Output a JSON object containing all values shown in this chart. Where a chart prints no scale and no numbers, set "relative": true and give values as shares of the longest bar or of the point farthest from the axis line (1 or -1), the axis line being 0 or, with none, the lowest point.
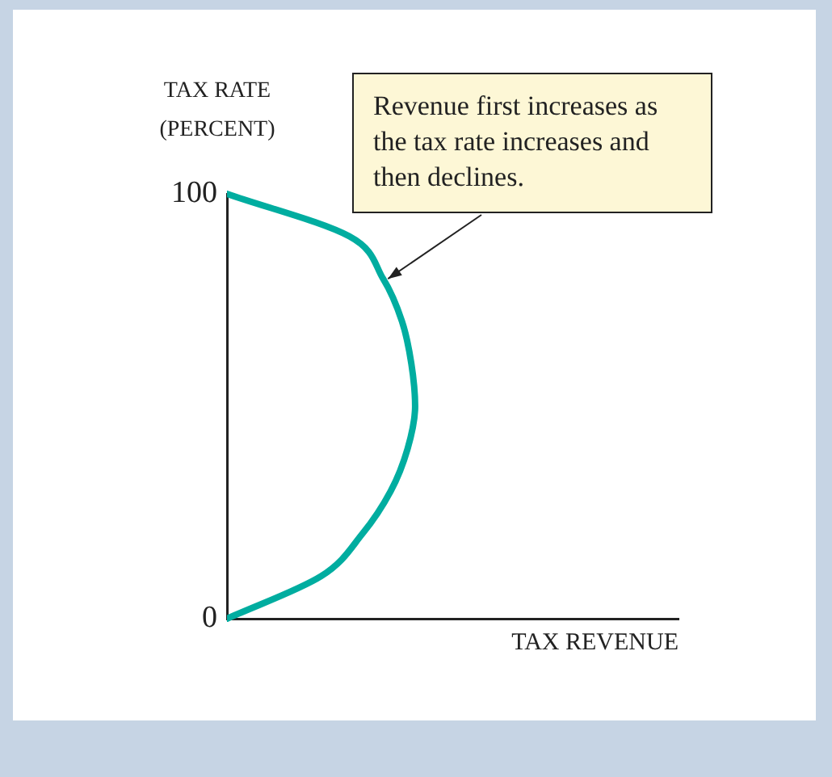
{
  "chart_data": {
    "type": "line",
    "orientation": "horizontal",
    "relative": true,
    "xlabel": "TAX REVENUE",
    "ylabel": "TAX RATE (PERCENT)",
    "categories": [
      "100",
      null,
      null,
      null,
      null,
      null,
      null,
      null,
      null,
      null,
      "0"
    ],
    "values": [
      0,
      0.65,
      0.83,
      0.93,
      0.98,
      1,
      0.96,
      0.87,
      0.72,
      0.5,
      0
    ],
    "color": "#00ada0",
    "marker": "none",
    "line_style": "solid",
    "grid": false,
    "legend": false,
    "annotations": [
      "Revenue first increases as the tax rate increases and then declines."
    ]
  }
}
